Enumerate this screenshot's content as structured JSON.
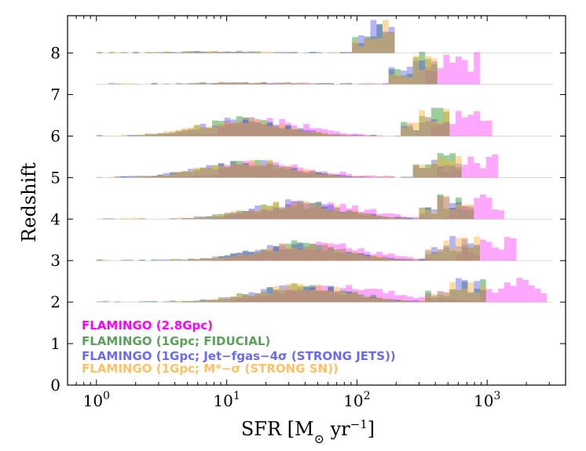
{
  "chart_data": {
    "type": "histogram-ridgeline",
    "title": "",
    "xlabel_main": "SFR [M",
    "xlabel_sub": "⊙",
    "xlabel_unit": " yr",
    "xlabel_exp": "−1",
    "xlabel_close": "]",
    "ylabel": "Redshift",
    "xscale": "log",
    "xlim": [
      0.6,
      4000
    ],
    "ylim": [
      0,
      8.9
    ],
    "x_ticks": [
      {
        "value": 1,
        "base": "10",
        "exp": "0"
      },
      {
        "value": 10,
        "base": "10",
        "exp": "1"
      },
      {
        "value": 100,
        "base": "10",
        "exp": "2"
      },
      {
        "value": 1000,
        "base": "10",
        "exp": "3"
      }
    ],
    "y_ticks": [
      0,
      1,
      2,
      3,
      4,
      5,
      6,
      7,
      8
    ],
    "redshift_rows": [
      8,
      7.25,
      6,
      5,
      4,
      3,
      2
    ],
    "series": [
      {
        "name": "FLAMINGO (2.8Gpc)",
        "color": "#ff00ff",
        "alpha": 0.35
      },
      {
        "name": "FLAMINGO (1Gpc; FIDUCIAL)",
        "color": "#3a9b3a",
        "alpha": 0.5
      },
      {
        "name": "FLAMINGO (1Gpc; Jet−fgas−4σ (STRONG JETS))",
        "color": "#4444ee",
        "alpha": 0.4
      },
      {
        "name": "FLAMINGO (1Gpc; M*−σ (STRONG SN))",
        "color": "#ffb030",
        "alpha": 0.45
      }
    ],
    "approx_sfr_ranges_by_redshift": [
      {
        "z": 8,
        "fiducial_max": 200,
        "large_box_max": 0
      },
      {
        "z": 7.25,
        "fiducial_max": 450,
        "large_box_max": 900
      },
      {
        "z": 6,
        "fiducial_max": 550,
        "large_box_max": 1100
      },
      {
        "z": 5,
        "fiducial_max": 700,
        "large_box_max": 1300
      },
      {
        "z": 4,
        "fiducial_max": 800,
        "large_box_max": 1500
      },
      {
        "z": 3,
        "fiducial_max": 900,
        "large_box_max": 1800
      },
      {
        "z": 2,
        "fiducial_max": 1000,
        "large_box_max": 3000
      }
    ]
  }
}
